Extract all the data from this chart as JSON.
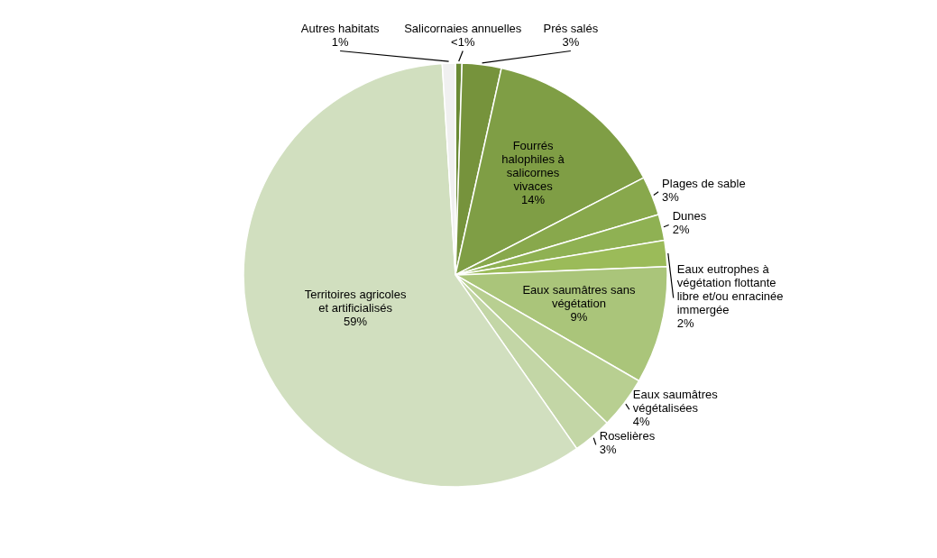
{
  "chart_data": {
    "type": "pie",
    "categories": [
      "Salicornaies annuelles",
      "Prés salés",
      "Fourrés halophiles à salicornes vivaces",
      "Plages de sable",
      "Dunes",
      "Eaux eutrophes à végétation flottante libre et/ou enracinée immergée",
      "Eaux saumâtres sans végétation",
      "Eaux saumâtres végétalisées",
      "Roselières",
      "Territoires agricoles et artificialisés",
      "Autres habitats"
    ],
    "values": [
      0.5,
      3,
      14,
      3,
      2,
      2,
      9,
      4,
      3,
      59,
      1
    ],
    "value_labels": [
      "<1%",
      "3%",
      "14%",
      "3%",
      "2%",
      "2%",
      "9%",
      "4%",
      "3%",
      "59%",
      "1%"
    ],
    "colors": [
      "#6a8a35",
      "#76933c",
      "#7f9e45",
      "#88a84c",
      "#8fb153",
      "#9bbb59",
      "#aac57a",
      "#b8cf91",
      "#c3d6a6",
      "#d1dfbf",
      "#f0f0f0"
    ]
  }
}
